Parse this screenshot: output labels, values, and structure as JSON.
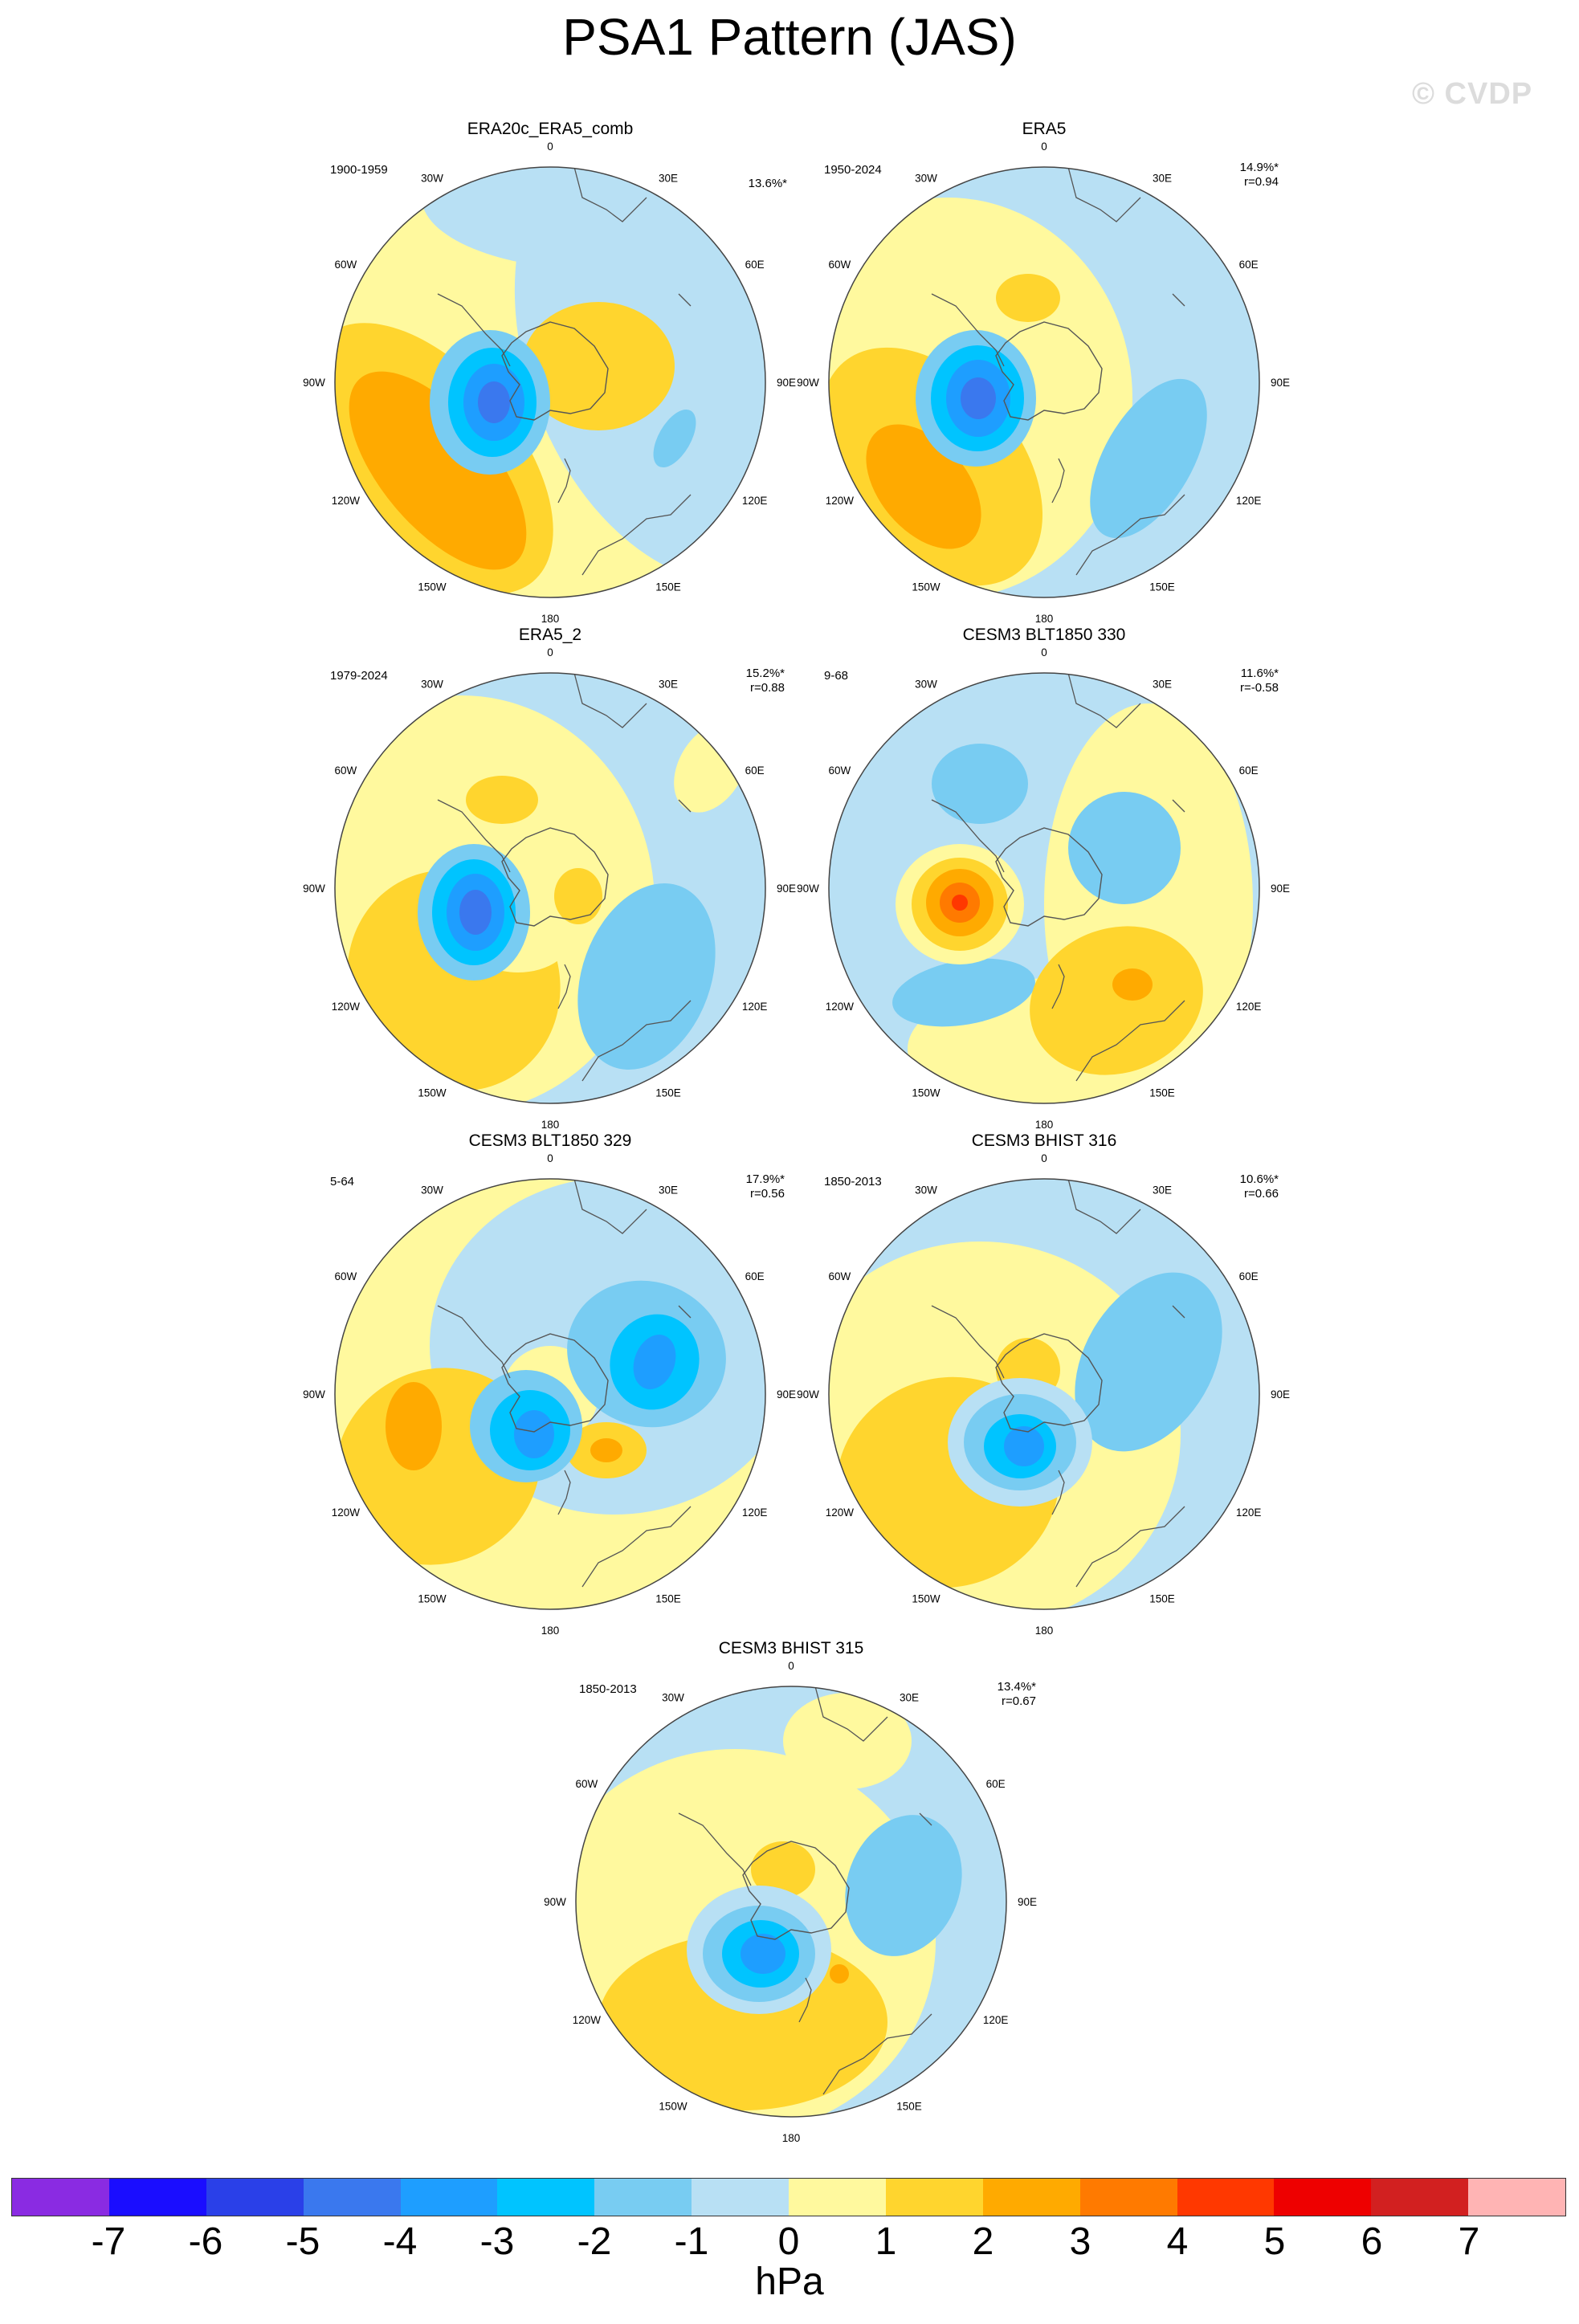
{
  "figure": {
    "title": "PSA1 Pattern (JAS)",
    "watermark": "© CVDP"
  },
  "lon_labels": {
    "n0": "0",
    "n30e": "30E",
    "n60e": "60E",
    "n90e": "90E",
    "n120e": "120E",
    "n150e": "150E",
    "n180": "180",
    "n150w": "150W",
    "n120w": "120W",
    "n90w": "90W",
    "n60w": "60W",
    "n30w": "30W"
  },
  "panels": [
    {
      "title": "ERA20c_ERA5_comb",
      "years": "1900-1959",
      "pct": "13.6%*",
      "r": ""
    },
    {
      "title": "ERA5",
      "years": "1950-2024",
      "pct": "14.9%*",
      "r": "r=0.94"
    },
    {
      "title": "ERA5_2",
      "years": "1979-2024",
      "pct": "15.2%*",
      "r": "r=0.88"
    },
    {
      "title": "CESM3 BLT1850 330",
      "years": "9-68",
      "pct": "11.6%*",
      "r": "r=-0.58"
    },
    {
      "title": "CESM3 BLT1850 329",
      "years": "5-64",
      "pct": "17.9%*",
      "r": "r=0.56"
    },
    {
      "title": "CESM3 BHIST 316",
      "years": "1850-2013",
      "pct": "10.6%*",
      "r": "r=0.66"
    },
    {
      "title": "CESM3 BHIST 315",
      "years": "1850-2013",
      "pct": "13.4%*",
      "r": "r=0.67"
    }
  ],
  "colorbar": {
    "units": "hPa",
    "labels": [
      "-7",
      "-6",
      "-5",
      "-4",
      "-3",
      "-2",
      "-1",
      "0",
      "1",
      "2",
      "3",
      "4",
      "5",
      "6",
      "7"
    ],
    "colors": [
      "#8a2be2",
      "#1a0dff",
      "#2a40e8",
      "#3a78ee",
      "#1e9eff",
      "#00c4ff",
      "#78ccf2",
      "#b8e0f4",
      "#fff99e",
      "#ffd52e",
      "#ffaa00",
      "#ff7a00",
      "#ff3800",
      "#ee0000",
      "#d22020",
      "#ffb4b4"
    ]
  }
}
